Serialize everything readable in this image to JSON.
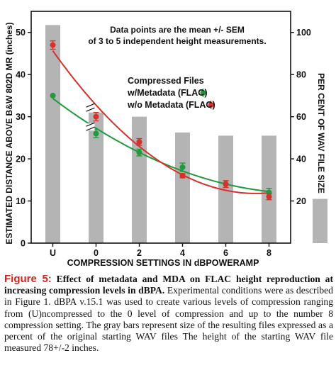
{
  "colors": {
    "with_metadata": "#1f9a3c",
    "without_metadata": "#d8302a",
    "bars": "#b4b4b4",
    "caption_label": "#d2231f"
  },
  "chart_data": {
    "type": "line",
    "annotation_lines": [
      "Data points are the mean +/- SEM",
      "of 3 to 5 independent height measurements."
    ],
    "xlabel": "COMPRESSION SETTINGS IN dBPOWERAMP",
    "ylabel": "ESTIMATED DISTANCE ABOVE B&W 802D MR (inches)",
    "y2label": "PER CENT OF WAV FILE SIZE",
    "categories": [
      "U",
      "0",
      "2",
      "4",
      "6",
      "8"
    ],
    "ylim": [
      0,
      55
    ],
    "yticks": [
      0,
      10,
      20,
      30,
      40,
      50
    ],
    "y2lim": [
      0,
      110
    ],
    "y2ticks": [
      20,
      40,
      60,
      80,
      100
    ],
    "legend_title_lines": [
      "Compressed Files"
    ],
    "legend_position": "top-right",
    "grid": false,
    "axis_break": true,
    "bars": {
      "axis": "right",
      "values": [
        103.5,
        62,
        60,
        52.5,
        51,
        51
      ],
      "extra_bar_value": 21
    },
    "series": [
      {
        "name": "w/Metadata (FLAC)",
        "key": "with_metadata",
        "values": [
          35,
          26,
          21.5,
          18,
          14,
          12
        ],
        "err": [
          0,
          1,
          0.8,
          1,
          0.8,
          1
        ]
      },
      {
        "name": "w/o Metadata (FLAC)",
        "key": "without_metadata",
        "values": [
          47,
          30,
          24,
          16,
          14,
          11
        ],
        "err": [
          1,
          1,
          0.8,
          0.5,
          0.8,
          0.7
        ]
      }
    ]
  },
  "caption": {
    "label": "Figure 5:",
    "headline": "Effect of metadata and MDA on FLAC height reproduction at increasing compression levels in dBPA.",
    "body": "Experimental conditions were as described in Figure 1. dBPA v.15.1 was used to create various levels of compression ranging from (U)ncompressed to the 0 level of compression and up to the number 8 compression setting. The gray bars represent size of the resulting files expressed as a percent of the original starting WAV files The height of the starting WAV file measured 78+/-2 inches."
  }
}
